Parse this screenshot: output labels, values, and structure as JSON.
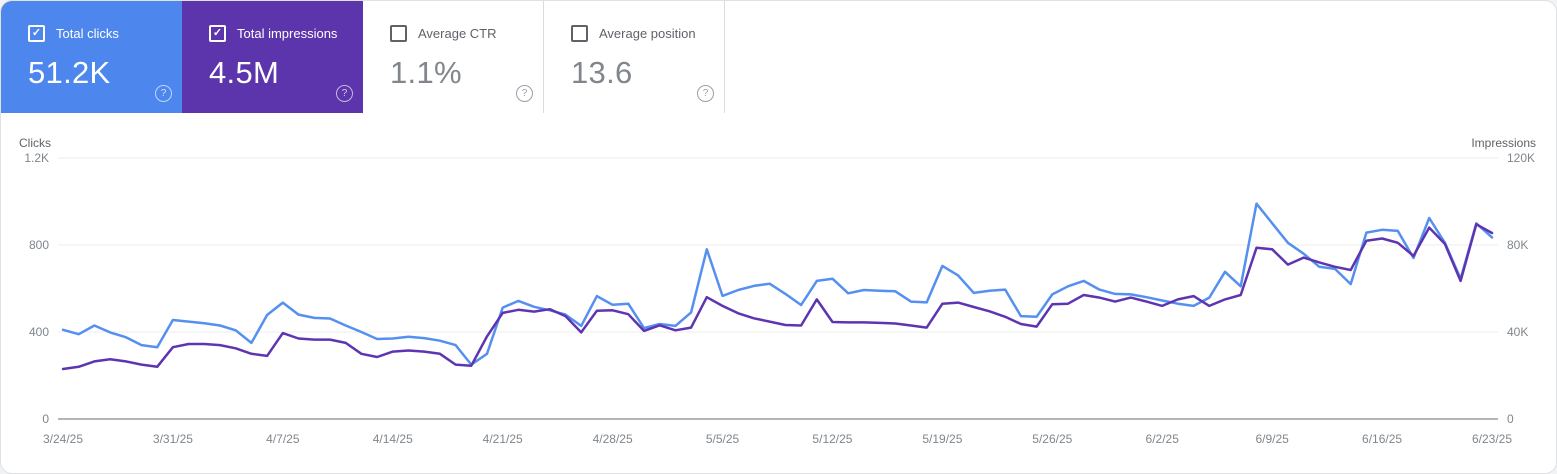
{
  "cards": [
    {
      "label": "Total clicks",
      "value": "51.2K",
      "selected": true,
      "color": "#4d87ee"
    },
    {
      "label": "Total impressions",
      "value": "4.5M",
      "selected": true,
      "color": "#5c34ab"
    },
    {
      "label": "Average CTR",
      "value": "1.1%",
      "selected": false
    },
    {
      "label": "Average position",
      "value": "13.6",
      "selected": false
    }
  ],
  "icons": {
    "checkbox_checked": "✓",
    "help": "?"
  },
  "chart_data": {
    "type": "line",
    "left_axis": {
      "title": "Clicks",
      "max": 1200,
      "ticks": [
        "0",
        "400",
        "800",
        "1.2K"
      ]
    },
    "right_axis": {
      "title": "Impressions",
      "max": 120000,
      "ticks": [
        "0",
        "40K",
        "80K",
        "120K"
      ]
    },
    "grid": "horizontal-only",
    "x_tick_labels": [
      "3/24/25",
      "3/31/25",
      "4/7/25",
      "4/14/25",
      "4/21/25",
      "4/28/25",
      "5/5/25",
      "5/12/25",
      "5/19/25",
      "5/26/25",
      "6/2/25",
      "6/9/25",
      "6/16/25",
      "6/23/25"
    ],
    "x_points_per_tick": 7,
    "series": [
      {
        "name": "Clicks",
        "axis": "left",
        "color": "#5590f1",
        "values": [
          410,
          390,
          430,
          398,
          376,
          340,
          330,
          455,
          448,
          440,
          430,
          408,
          350,
          478,
          535,
          480,
          465,
          462,
          430,
          400,
          368,
          370,
          378,
          372,
          360,
          340,
          250,
          300,
          512,
          543,
          516,
          500,
          480,
          428,
          565,
          525,
          530,
          418,
          437,
          428,
          490,
          780,
          566,
          593,
          612,
          622,
          575,
          524,
          635,
          645,
          578,
          593,
          590,
          587,
          540,
          536,
          704,
          660,
          580,
          590,
          595,
          473,
          470,
          573,
          610,
          635,
          595,
          575,
          573,
          560,
          545,
          530,
          520,
          558,
          677,
          610,
          990,
          900,
          810,
          760,
          700,
          690,
          620,
          857,
          870,
          865,
          740,
          924,
          810,
          645,
          900,
          835
        ]
      },
      {
        "name": "Impressions",
        "axis": "right",
        "color": "#5e35b1",
        "values": [
          23000,
          24000,
          26500,
          27500,
          26500,
          25000,
          24000,
          33000,
          34500,
          34500,
          34000,
          32500,
          30000,
          29000,
          39500,
          37000,
          36500,
          36500,
          35000,
          30000,
          28500,
          31000,
          31500,
          31000,
          30000,
          25000,
          24500,
          38000,
          48800,
          50200,
          49400,
          50500,
          47300,
          39800,
          49800,
          50000,
          48200,
          40500,
          43100,
          40800,
          42000,
          56000,
          52000,
          48600,
          46300,
          44800,
          43200,
          43000,
          55000,
          44600,
          44400,
          44400,
          44200,
          43900,
          43000,
          42000,
          53000,
          53500,
          51500,
          49500,
          47000,
          43700,
          42500,
          52800,
          53000,
          57000,
          55800,
          54000,
          55800,
          54000,
          52000,
          55000,
          56500,
          52000,
          55000,
          57000,
          78700,
          78000,
          71000,
          74200,
          72000,
          70000,
          68500,
          82000,
          83000,
          81000,
          75000,
          88000,
          80500,
          63500,
          89500,
          85500
        ]
      }
    ]
  }
}
